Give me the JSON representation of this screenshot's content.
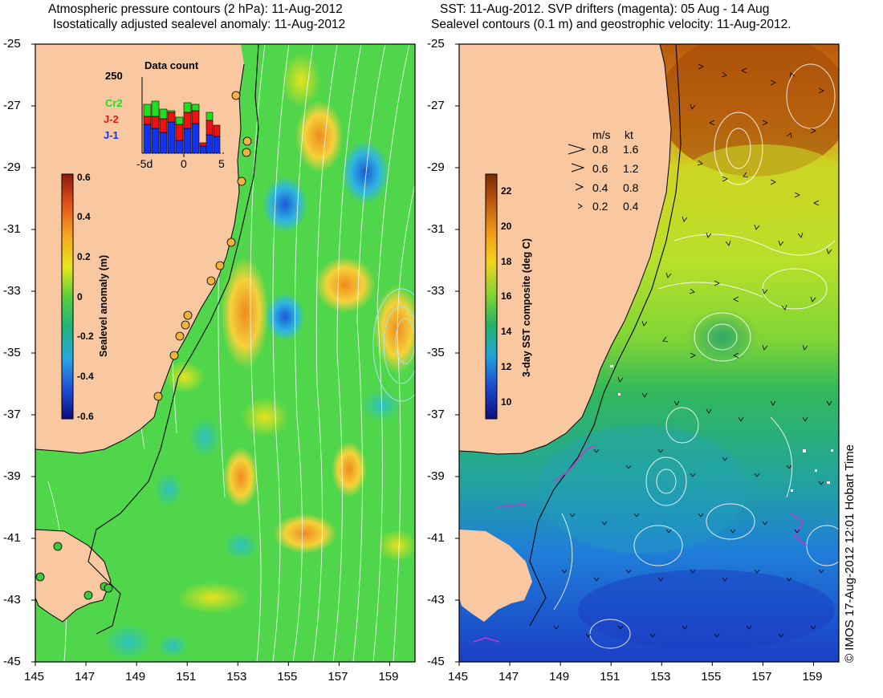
{
  "left_panel": {
    "title_line1": "Atmospheric pressure contours (2 hPa): 11-Aug-2012",
    "title_line2": "Isostatically adjusted sealevel anomaly: 11-Aug-2012",
    "colorbar": {
      "label": "Sealevel anomaly (m)",
      "ticks": [
        "0.6",
        "0.4",
        "0.2",
        "0",
        "-0.2",
        "-0.4",
        "-0.6"
      ],
      "range": [
        -0.6,
        0.6
      ]
    },
    "inset": {
      "title": "Data count",
      "ymax_label": "250",
      "xticks": [
        "-5d",
        "0",
        "5"
      ],
      "legend": [
        {
          "label": "Cr2",
          "color": "#22dd22"
        },
        {
          "label": "J-2",
          "color": "#ee1111"
        },
        {
          "label": "J-1",
          "color": "#1133ee"
        }
      ]
    }
  },
  "right_panel": {
    "title_line1": "SST: 11-Aug-2012. SVP drifters (magenta): 05 Aug - 14 Aug",
    "title_line2": "Sealevel contours (0.1 m) and geostrophic velocity: 11-Aug-2012.",
    "colorbar": {
      "label": "3-day SST composite (deg C)",
      "ticks": [
        "22",
        "20",
        "18",
        "16",
        "14",
        "12",
        "10"
      ],
      "range": [
        9.2,
        23.2
      ]
    },
    "speed_legend": {
      "header_ms": "m/s",
      "header_kt": "kt",
      "rows": [
        {
          "ms": "0.8",
          "kt": "1.6"
        },
        {
          "ms": "0.6",
          "kt": "1.2"
        },
        {
          "ms": "0.4",
          "kt": "0.8"
        },
        {
          "ms": "0.2",
          "kt": "0.4"
        }
      ]
    }
  },
  "axes": {
    "lat_ticks": [
      "-25",
      "-27",
      "-29",
      "-31",
      "-33",
      "-35",
      "-37",
      "-39",
      "-41",
      "-43",
      "-45"
    ],
    "lon_ticks": [
      "145",
      "147",
      "149",
      "151",
      "153",
      "155",
      "157",
      "159"
    ],
    "lat_range": [
      -45,
      -25
    ],
    "lon_range": [
      145,
      160
    ]
  },
  "credit": "© IMOS 17-Aug-2012 12:01 Hobart Time",
  "colors": {
    "land": "#f9c8a0",
    "ocean_left": "#4fd64a",
    "sst_warm": "#c9620a",
    "sst_cold": "#1e5bd6"
  }
}
